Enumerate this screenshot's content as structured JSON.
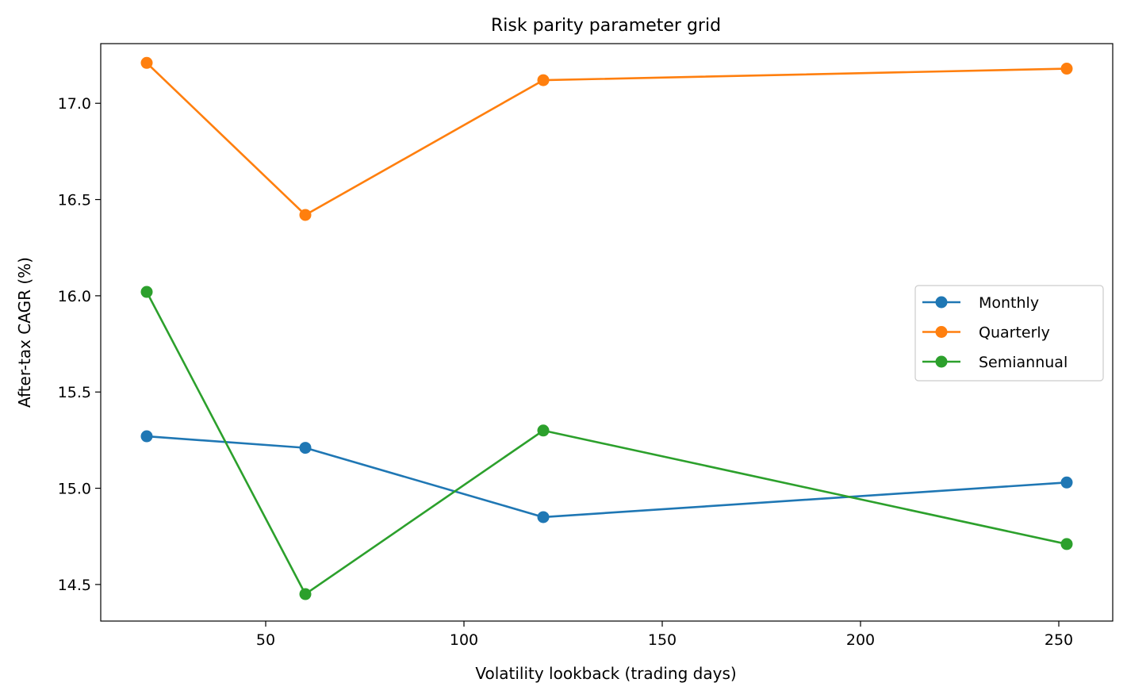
{
  "chart_data": {
    "type": "line",
    "title": "Risk parity parameter grid",
    "xlabel": "Volatility lookback (trading days)",
    "ylabel": "After-tax CAGR (%)",
    "xlim": [
      8.4,
      263.6
    ],
    "ylim": [
      14.31,
      17.31
    ],
    "xticks": [
      50,
      100,
      150,
      200,
      250
    ],
    "xtick_labels": [
      "50",
      "100",
      "150",
      "200",
      "250"
    ],
    "yticks": [
      14.5,
      15.0,
      15.5,
      16.0,
      16.5,
      17.0
    ],
    "ytick_labels": [
      "14.5",
      "15.0",
      "15.5",
      "16.0",
      "16.5",
      "17.0"
    ],
    "grid": false,
    "legend_position": "center right",
    "x": [
      20,
      60,
      120,
      252
    ],
    "series": [
      {
        "name": "Monthly",
        "color": "#1f77b4",
        "values": [
          15.27,
          15.21,
          14.85,
          15.03
        ]
      },
      {
        "name": "Quarterly",
        "color": "#ff7f0e",
        "values": [
          17.21,
          16.42,
          17.12,
          17.18
        ]
      },
      {
        "name": "Semiannual",
        "color": "#2ca02c",
        "values": [
          16.02,
          14.45,
          15.3,
          14.71
        ]
      }
    ]
  }
}
